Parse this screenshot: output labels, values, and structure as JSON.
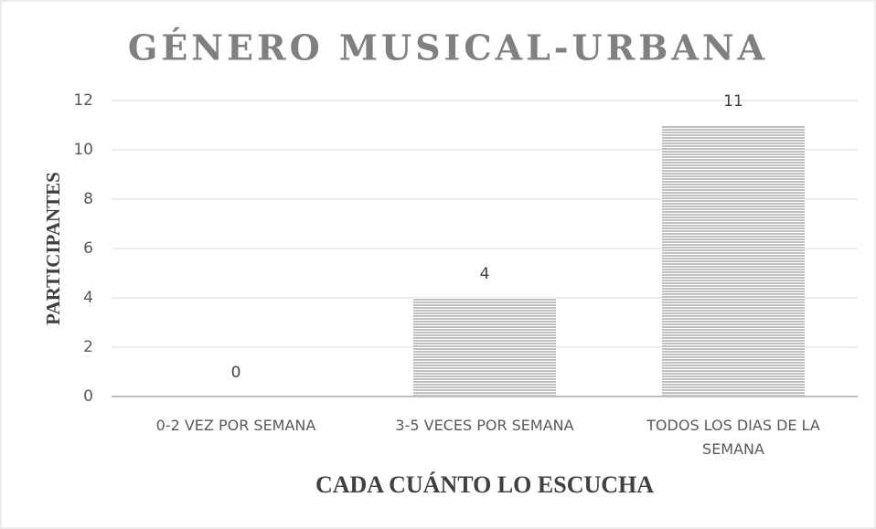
{
  "chart_data": {
    "type": "bar",
    "title": "GÉNERO MUSICAL-URBANA",
    "x_label": "CADA CUÁNTO LO ESCUCHA",
    "y_label": "PARTICIPANTES",
    "categories": [
      "0-2 VEZ POR SEMANA",
      "3-5 VECES POR SEMANA",
      "TODOS LOS DIAS DE LA SEMANA"
    ],
    "values": [
      0,
      4,
      11
    ],
    "color": "#a6a6a6",
    "ylim": [
      0,
      12
    ],
    "yticks": [
      0,
      2,
      4,
      6,
      8,
      10,
      12
    ],
    "grid": true
  }
}
